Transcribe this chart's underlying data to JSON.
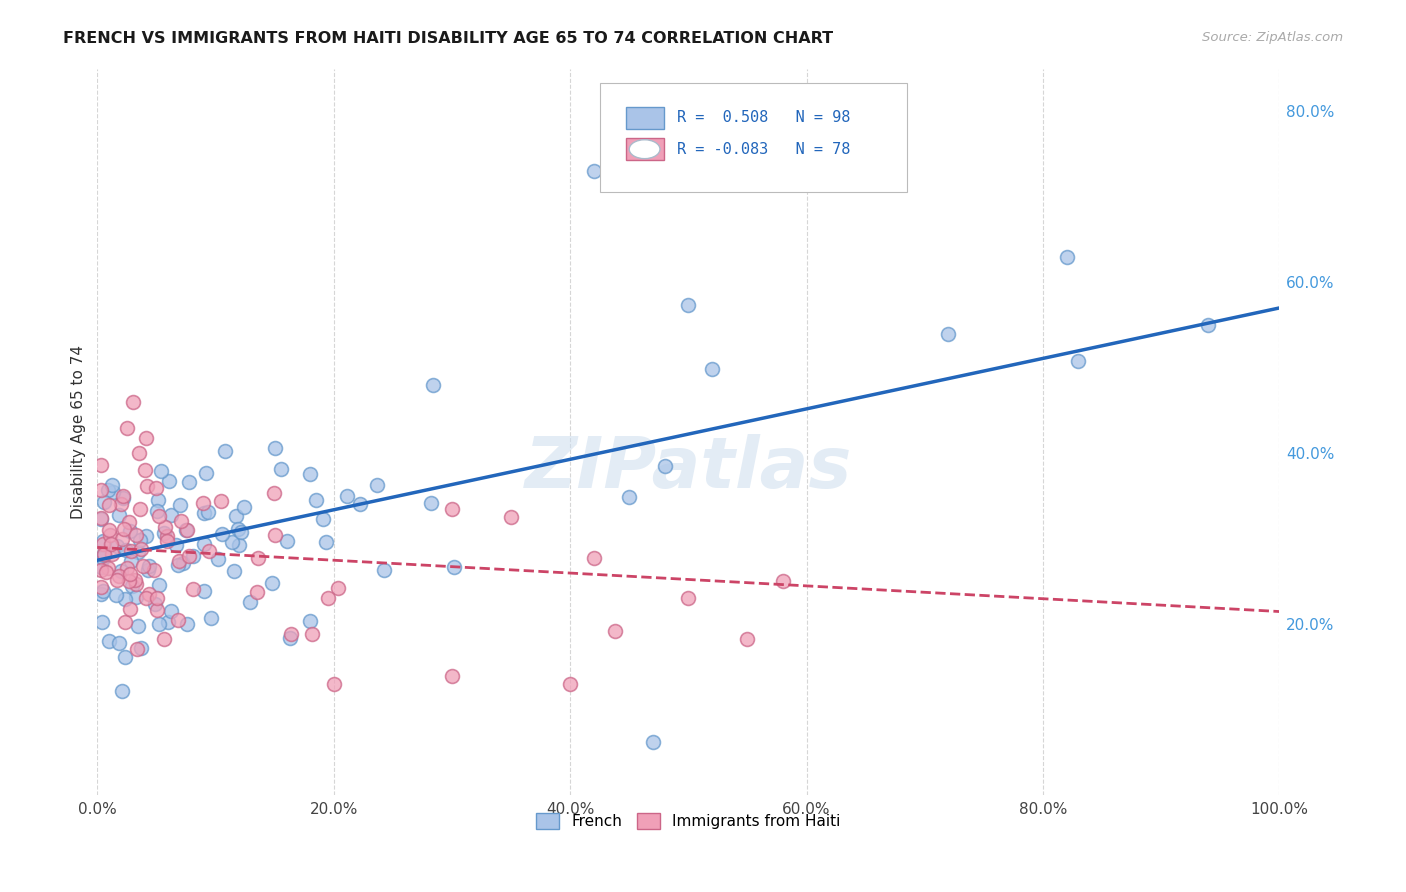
{
  "title": "FRENCH VS IMMIGRANTS FROM HAITI DISABILITY AGE 65 TO 74 CORRELATION CHART",
  "source": "Source: ZipAtlas.com",
  "ylabel": "Disability Age 65 to 74",
  "watermark": "ZIPatlas",
  "legend_french_R": "0.508",
  "legend_french_N": "98",
  "legend_haiti_R": "-0.083",
  "legend_haiti_N": "78",
  "french_color": "#aac4e8",
  "french_edge_color": "#6699cc",
  "haiti_color": "#f0a0b8",
  "haiti_edge_color": "#cc6688",
  "french_line_color": "#2266bb",
  "haiti_line_color": "#cc4466",
  "background_color": "#ffffff",
  "grid_color": "#cccccc",
  "right_axis_color": "#4499dd",
  "xlim": [
    0.0,
    1.0
  ],
  "ylim": [
    0.0,
    0.85
  ],
  "x_ticks": [
    0.0,
    0.2,
    0.4,
    0.6,
    0.8,
    1.0
  ],
  "y_ticks_right": [
    0.2,
    0.4,
    0.6,
    0.8
  ],
  "french_line_x0": 0.0,
  "french_line_y0": 0.275,
  "french_line_x1": 1.0,
  "french_line_y1": 0.57,
  "haiti_line_x0": 0.0,
  "haiti_line_y0": 0.29,
  "haiti_line_x1": 1.0,
  "haiti_line_y1": 0.215,
  "marker_size": 100
}
